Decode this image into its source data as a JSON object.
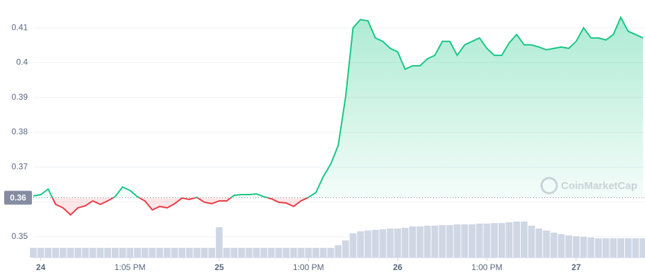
{
  "chart_data": {
    "type": "line",
    "categories": [
      null,
      "24",
      null,
      null,
      null,
      null,
      null,
      null,
      null,
      null,
      null,
      null,
      null,
      "1:05 PM",
      null,
      null,
      null,
      null,
      null,
      null,
      null,
      null,
      null,
      null,
      null,
      "25",
      null,
      null,
      null,
      null,
      null,
      null,
      null,
      null,
      null,
      null,
      null,
      "1:00 PM",
      null,
      null,
      null,
      null,
      null,
      null,
      null,
      null,
      null,
      null,
      null,
      "26",
      null,
      null,
      null,
      null,
      null,
      null,
      null,
      null,
      null,
      null,
      null,
      "1:00 PM",
      null,
      null,
      null,
      null,
      null,
      null,
      null,
      null,
      null,
      null,
      null,
      "27",
      null,
      null,
      null,
      null,
      null,
      null,
      null,
      null,
      null
    ],
    "series": [
      {
        "type": "line",
        "color": "#16c784",
        "color_below": "#ea3943",
        "values": [
          0.3617,
          0.3621,
          0.3637,
          0.3593,
          0.3583,
          0.3563,
          0.3583,
          0.3589,
          0.3603,
          0.3593,
          0.3603,
          0.3615,
          0.3643,
          0.3633,
          0.3615,
          0.3603,
          0.3577,
          0.3587,
          0.3583,
          0.3595,
          0.3611,
          0.3607,
          0.3613,
          0.3599,
          0.3595,
          0.3603,
          0.3603,
          0.3619,
          0.3621,
          0.3621,
          0.3623,
          0.3615,
          0.3609,
          0.3599,
          0.3597,
          0.3587,
          0.3603,
          0.3613,
          0.3627,
          0.3673,
          0.3709,
          0.3762,
          0.3902,
          0.41,
          0.4124,
          0.412,
          0.4071,
          0.4061,
          0.4041,
          0.4031,
          0.3981,
          0.3991,
          0.3991,
          0.4011,
          0.4021,
          0.4061,
          0.4061,
          0.4021,
          0.4051,
          0.4061,
          0.4071,
          0.4041,
          0.4021,
          0.4021,
          0.4057,
          0.4081,
          0.4051,
          0.4051,
          0.4045,
          0.4037,
          0.4041,
          0.4045,
          0.4041,
          0.4061,
          0.41,
          0.4071,
          0.4071,
          0.4065,
          0.4081,
          0.413,
          0.409,
          0.4081,
          0.4071
        ]
      },
      {
        "type": "bar",
        "axis": "y2",
        "color": "#cfd6e4",
        "values": [
          3.8,
          3.8,
          3.8,
          3.8,
          3.8,
          3.8,
          3.8,
          3.8,
          3.8,
          3.8,
          3.8,
          3.8,
          3.8,
          3.8,
          3.8,
          3.8,
          3.8,
          3.8,
          3.8,
          3.8,
          3.8,
          3.8,
          3.8,
          3.8,
          3.8,
          11.8,
          3.8,
          3.8,
          3.8,
          3.8,
          3.8,
          3.8,
          3.8,
          3.8,
          3.8,
          3.8,
          3.8,
          3.8,
          3.8,
          3.8,
          3.8,
          4.8,
          6.7,
          9.4,
          10.2,
          10.5,
          10.8,
          11.0,
          11.3,
          11.3,
          11.6,
          12.1,
          12.1,
          12.4,
          12.4,
          12.6,
          12.6,
          12.9,
          12.9,
          12.9,
          13.2,
          13.2,
          13.4,
          13.4,
          13.7,
          14.0,
          14.0,
          12.4,
          11.3,
          10.5,
          9.7,
          9.1,
          8.6,
          8.3,
          8.1,
          7.8,
          7.5,
          7.5,
          7.5,
          7.5,
          7.5,
          7.5,
          7.5
        ]
      }
    ],
    "ylim": [
      0.344,
      0.418
    ],
    "yticks": [
      0.35,
      0.36,
      0.37,
      0.38,
      0.39,
      0.4,
      0.41
    ],
    "y2lim": [
      0,
      100
    ],
    "grid": true,
    "reference": {
      "value": 0.3612,
      "label": "0.36"
    },
    "watermark": "CoinMarketCap"
  }
}
